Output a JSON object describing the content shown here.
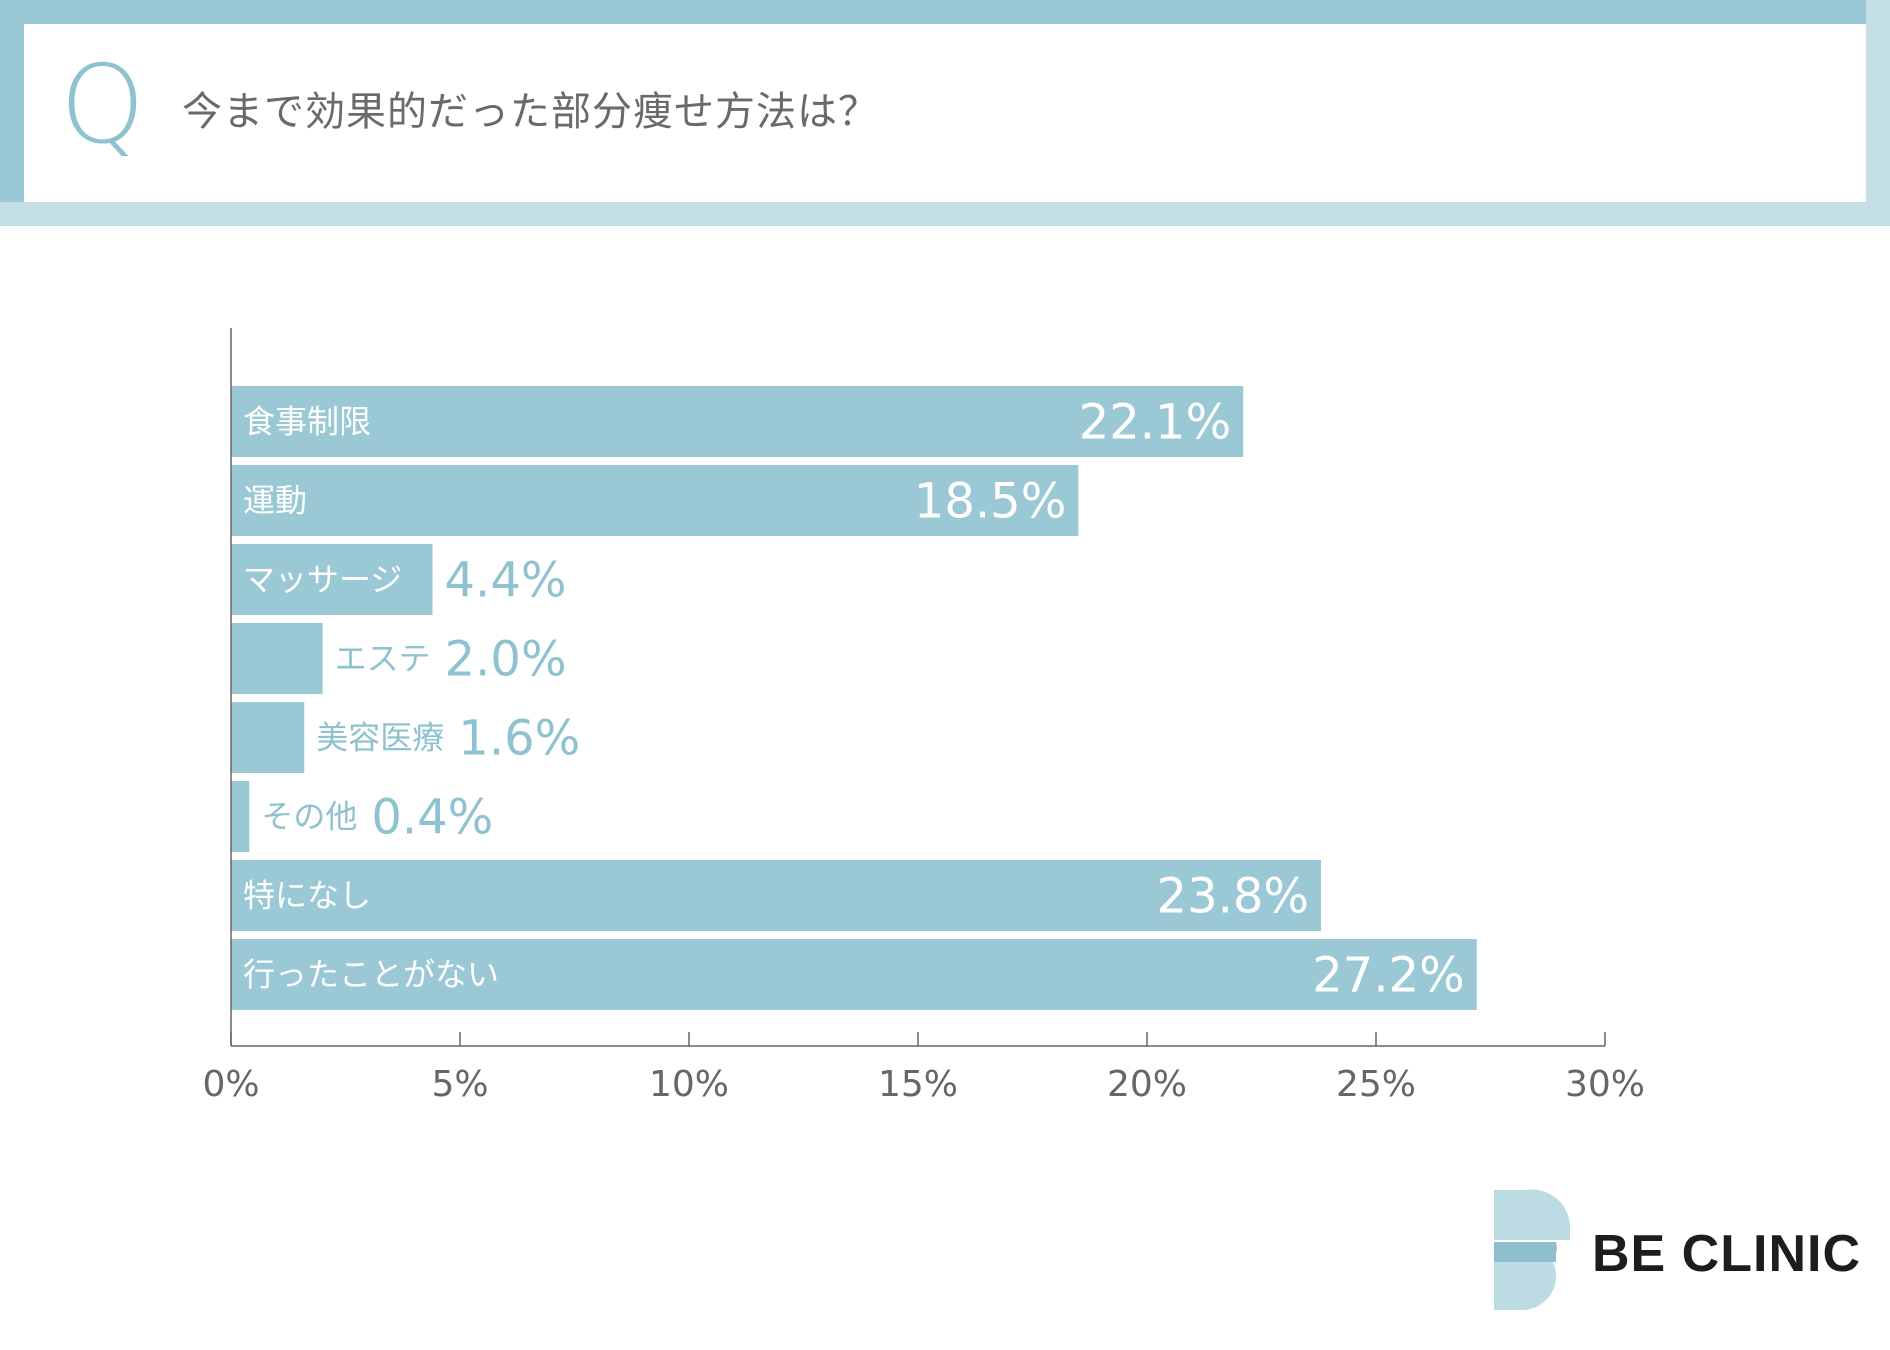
{
  "header": {
    "q_label": "Q",
    "question": "今まで効果的だった部分痩せ方法は？"
  },
  "colors": {
    "bar": "#9bc8d5",
    "frame_dark": "#99c8d4",
    "frame_light": "#c3dee5",
    "axis": "#666666",
    "tick_text": "#666666",
    "inside_text": "#ffffff",
    "outside_text": "#8fc2cf"
  },
  "chart_data": {
    "type": "bar",
    "orientation": "horizontal",
    "categories": [
      "食事制限",
      "運動",
      "マッサージ",
      "エステ",
      "美容医療",
      "その他",
      "特になし",
      "行ったことがない"
    ],
    "values": [
      22.1,
      18.5,
      4.4,
      2.0,
      1.6,
      0.4,
      23.8,
      27.2
    ],
    "value_labels": [
      "22.1%",
      "18.5%",
      "4.4%",
      "2.0%",
      "1.6%",
      "0.4%",
      "23.8%",
      "27.2%"
    ],
    "xlim": [
      0,
      30
    ],
    "x_ticks": [
      0,
      5,
      10,
      15,
      20,
      25,
      30
    ],
    "x_tick_labels": [
      "0%",
      "5%",
      "10%",
      "15%",
      "20%",
      "25%",
      "30%"
    ],
    "grid": false,
    "legend": "none"
  },
  "brand": {
    "name": "BE CLINIC",
    "logo_icon": "be-clinic-logo-icon"
  }
}
